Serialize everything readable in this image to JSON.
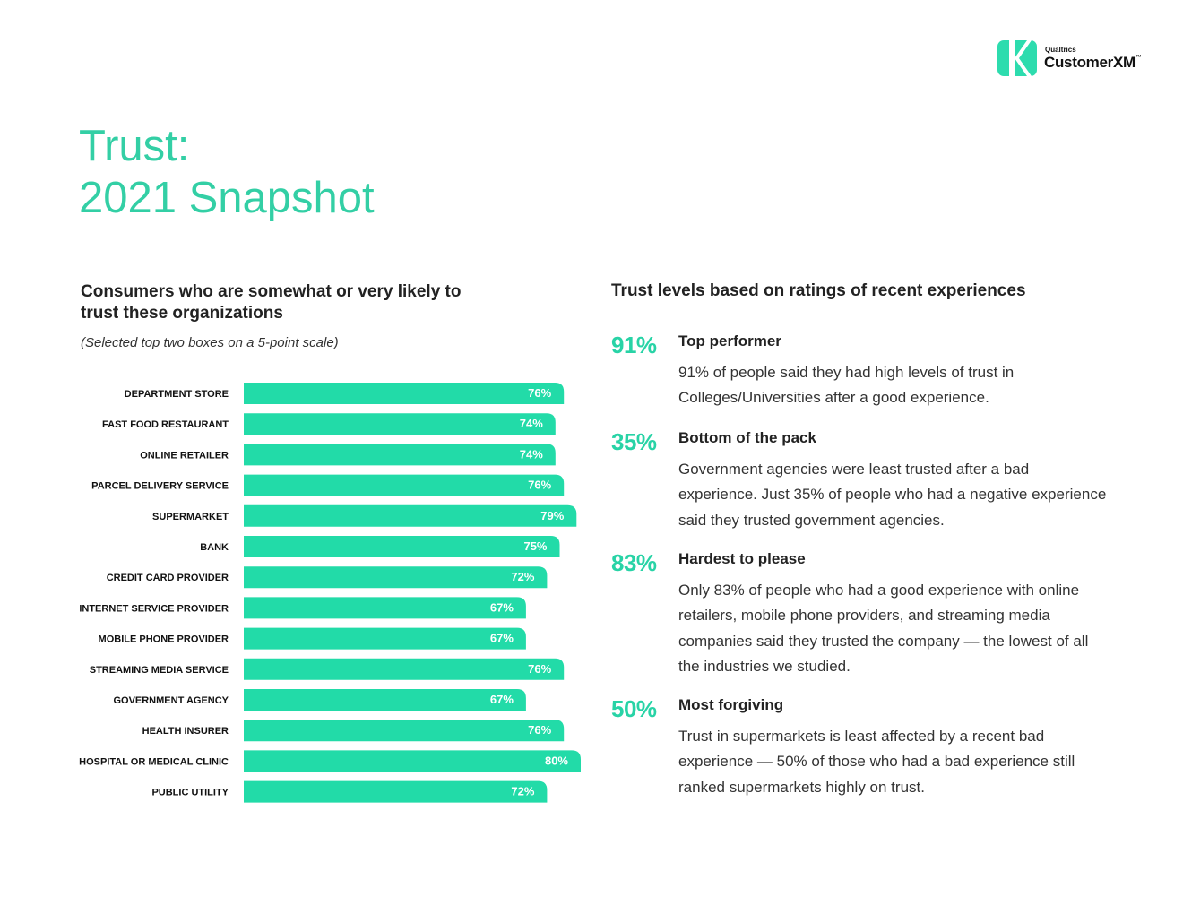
{
  "brand": {
    "company": "Qualtrics",
    "product": "CustomerXM",
    "trademark": "™",
    "color": "#28d3a6"
  },
  "title": {
    "line1": "Trust:",
    "line2": "2021 Snapshot"
  },
  "left_panel": {
    "heading": "Consumers who are somewhat or very likely to trust these organizations",
    "subheading": "(Selected top two boxes on a 5-point scale)"
  },
  "chart_data": {
    "type": "bar",
    "orientation": "horizontal",
    "title": "Consumers who are somewhat or very likely to trust these organizations",
    "subtitle": "(Selected top two boxes on a 5-point scale)",
    "categories": [
      "DEPARTMENT STORE",
      "FAST FOOD RESTAURANT",
      "ONLINE RETAILER",
      "PARCEL DELIVERY SERVICE",
      "SUPERMARKET",
      "BANK",
      "CREDIT CARD PROVIDER",
      "INTERNET SERVICE PROVIDER",
      "MOBILE PHONE PROVIDER",
      "STREAMING MEDIA SERVICE",
      "GOVERNMENT AGENCY",
      "HEALTH INSURER",
      "HOSPITAL OR MEDICAL CLINIC",
      "PUBLIC UTILITY"
    ],
    "values": [
      76,
      74,
      74,
      76,
      79,
      75,
      72,
      67,
      67,
      76,
      67,
      76,
      80,
      72
    ],
    "labels": [
      "76%",
      "74%",
      "74%",
      "76%",
      "79%",
      "75%",
      "72%",
      "67%",
      "67%",
      "76%",
      "67%",
      "76%",
      "80%",
      "72%"
    ],
    "unit": "%",
    "xlim": [
      0,
      100
    ],
    "grid": false,
    "legend": "none",
    "bar_color": "#22dba8"
  },
  "right_panel": {
    "heading": "Trust levels based on ratings of recent experiences",
    "stats": [
      {
        "percent": "91%",
        "title": "Top performer",
        "body": "91% of people said they had high levels of trust in Colleges/Universities after a good experience."
      },
      {
        "percent": "35%",
        "title": "Bottom of the pack",
        "body": "Government agencies were least trusted after a bad experience. Just 35% of people who had a negative experience said they trusted government agencies."
      },
      {
        "percent": "83%",
        "title": "Hardest to please",
        "body": "Only 83% of people who had a good experience with online retailers, mobile phone providers, and streaming media companies said they trusted the company — the lowest of all the industries we studied."
      },
      {
        "percent": "50%",
        "title": "Most forgiving",
        "body": "Trust in supermarkets is least affected by a recent bad experience — 50% of those who had a bad experience still ranked supermarkets highly on trust."
      }
    ]
  }
}
